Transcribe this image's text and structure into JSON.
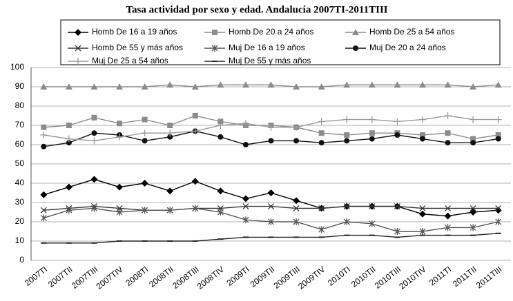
{
  "chart_data": {
    "type": "line",
    "title": "Tasa actividad por sexo y edad. Andalucía 2007TI-2011TIII",
    "categories": [
      "2007TI",
      "2007TII",
      "2007TIII",
      "2007TIV",
      "2008TI",
      "2008TII",
      "2008TIII",
      "2008TIV",
      "2009TI",
      "2009TII",
      "2009TIII",
      "2009TIV",
      "2010TI",
      "2010TII",
      "2010TIII",
      "2010TIV",
      "2011TI",
      "2011TII",
      "2011TIII"
    ],
    "series": [
      {
        "name": "Homb  De 16 a 19 años",
        "color": "#000000",
        "marker": "diamond",
        "values": [
          34,
          38,
          42,
          38,
          40,
          36,
          41,
          36,
          32,
          35,
          31,
          27,
          28,
          28,
          28,
          24,
          23,
          25,
          26
        ]
      },
      {
        "name": "Homb De 20 a 24 años",
        "color": "#8c8c8c",
        "marker": "square",
        "values": [
          69,
          70,
          74,
          71,
          73,
          70,
          75,
          72,
          70,
          70,
          69,
          66,
          65,
          66,
          66,
          65,
          66,
          63,
          65
        ]
      },
      {
        "name": "Homb De 25 a 54 años",
        "color": "#8c8c8c",
        "marker": "triangle",
        "values": [
          90,
          90,
          90,
          90,
          90,
          91,
          90,
          91,
          91,
          91,
          90,
          90,
          91,
          91,
          91,
          91,
          91,
          90,
          91
        ]
      },
      {
        "name": "Homb De 55 y más años",
        "color": "#333333",
        "marker": "x",
        "values": [
          26,
          27,
          28,
          27,
          26,
          26,
          27,
          27,
          28,
          28,
          27,
          27,
          28,
          28,
          28,
          27,
          27,
          27,
          27
        ]
      },
      {
        "name": "Muj De 16 a 19 años",
        "color": "#555555",
        "marker": "star",
        "values": [
          22,
          26,
          27,
          25,
          26,
          26,
          27,
          25,
          21,
          20,
          20,
          16,
          20,
          19,
          15,
          15,
          17,
          17,
          20
        ]
      },
      {
        "name": "Muj De 20 a 24 años",
        "color": "#111111",
        "marker": "circle",
        "values": [
          59,
          61,
          66,
          65,
          62,
          64,
          67,
          64,
          60,
          62,
          62,
          61,
          62,
          63,
          65,
          63,
          61,
          61,
          63
        ]
      },
      {
        "name": "Muj De 25 a 54 años",
        "color": "#9a9a9a",
        "marker": "plus",
        "values": [
          65,
          63,
          62,
          64,
          66,
          66,
          67,
          70,
          71,
          69,
          69,
          72,
          73,
          73,
          72,
          73,
          75,
          73,
          73
        ]
      },
      {
        "name": "Muj De 55 y más años",
        "color": "#222222",
        "marker": "dash",
        "values": [
          9,
          9,
          9,
          10,
          10,
          10,
          10,
          11,
          12,
          12,
          12,
          12,
          13,
          13,
          12,
          13,
          13,
          13,
          14
        ]
      }
    ],
    "ylim": [
      0,
      100
    ],
    "yticks": [
      0,
      10,
      20,
      30,
      40,
      50,
      60,
      70,
      80,
      90,
      100
    ],
    "grid": true
  }
}
